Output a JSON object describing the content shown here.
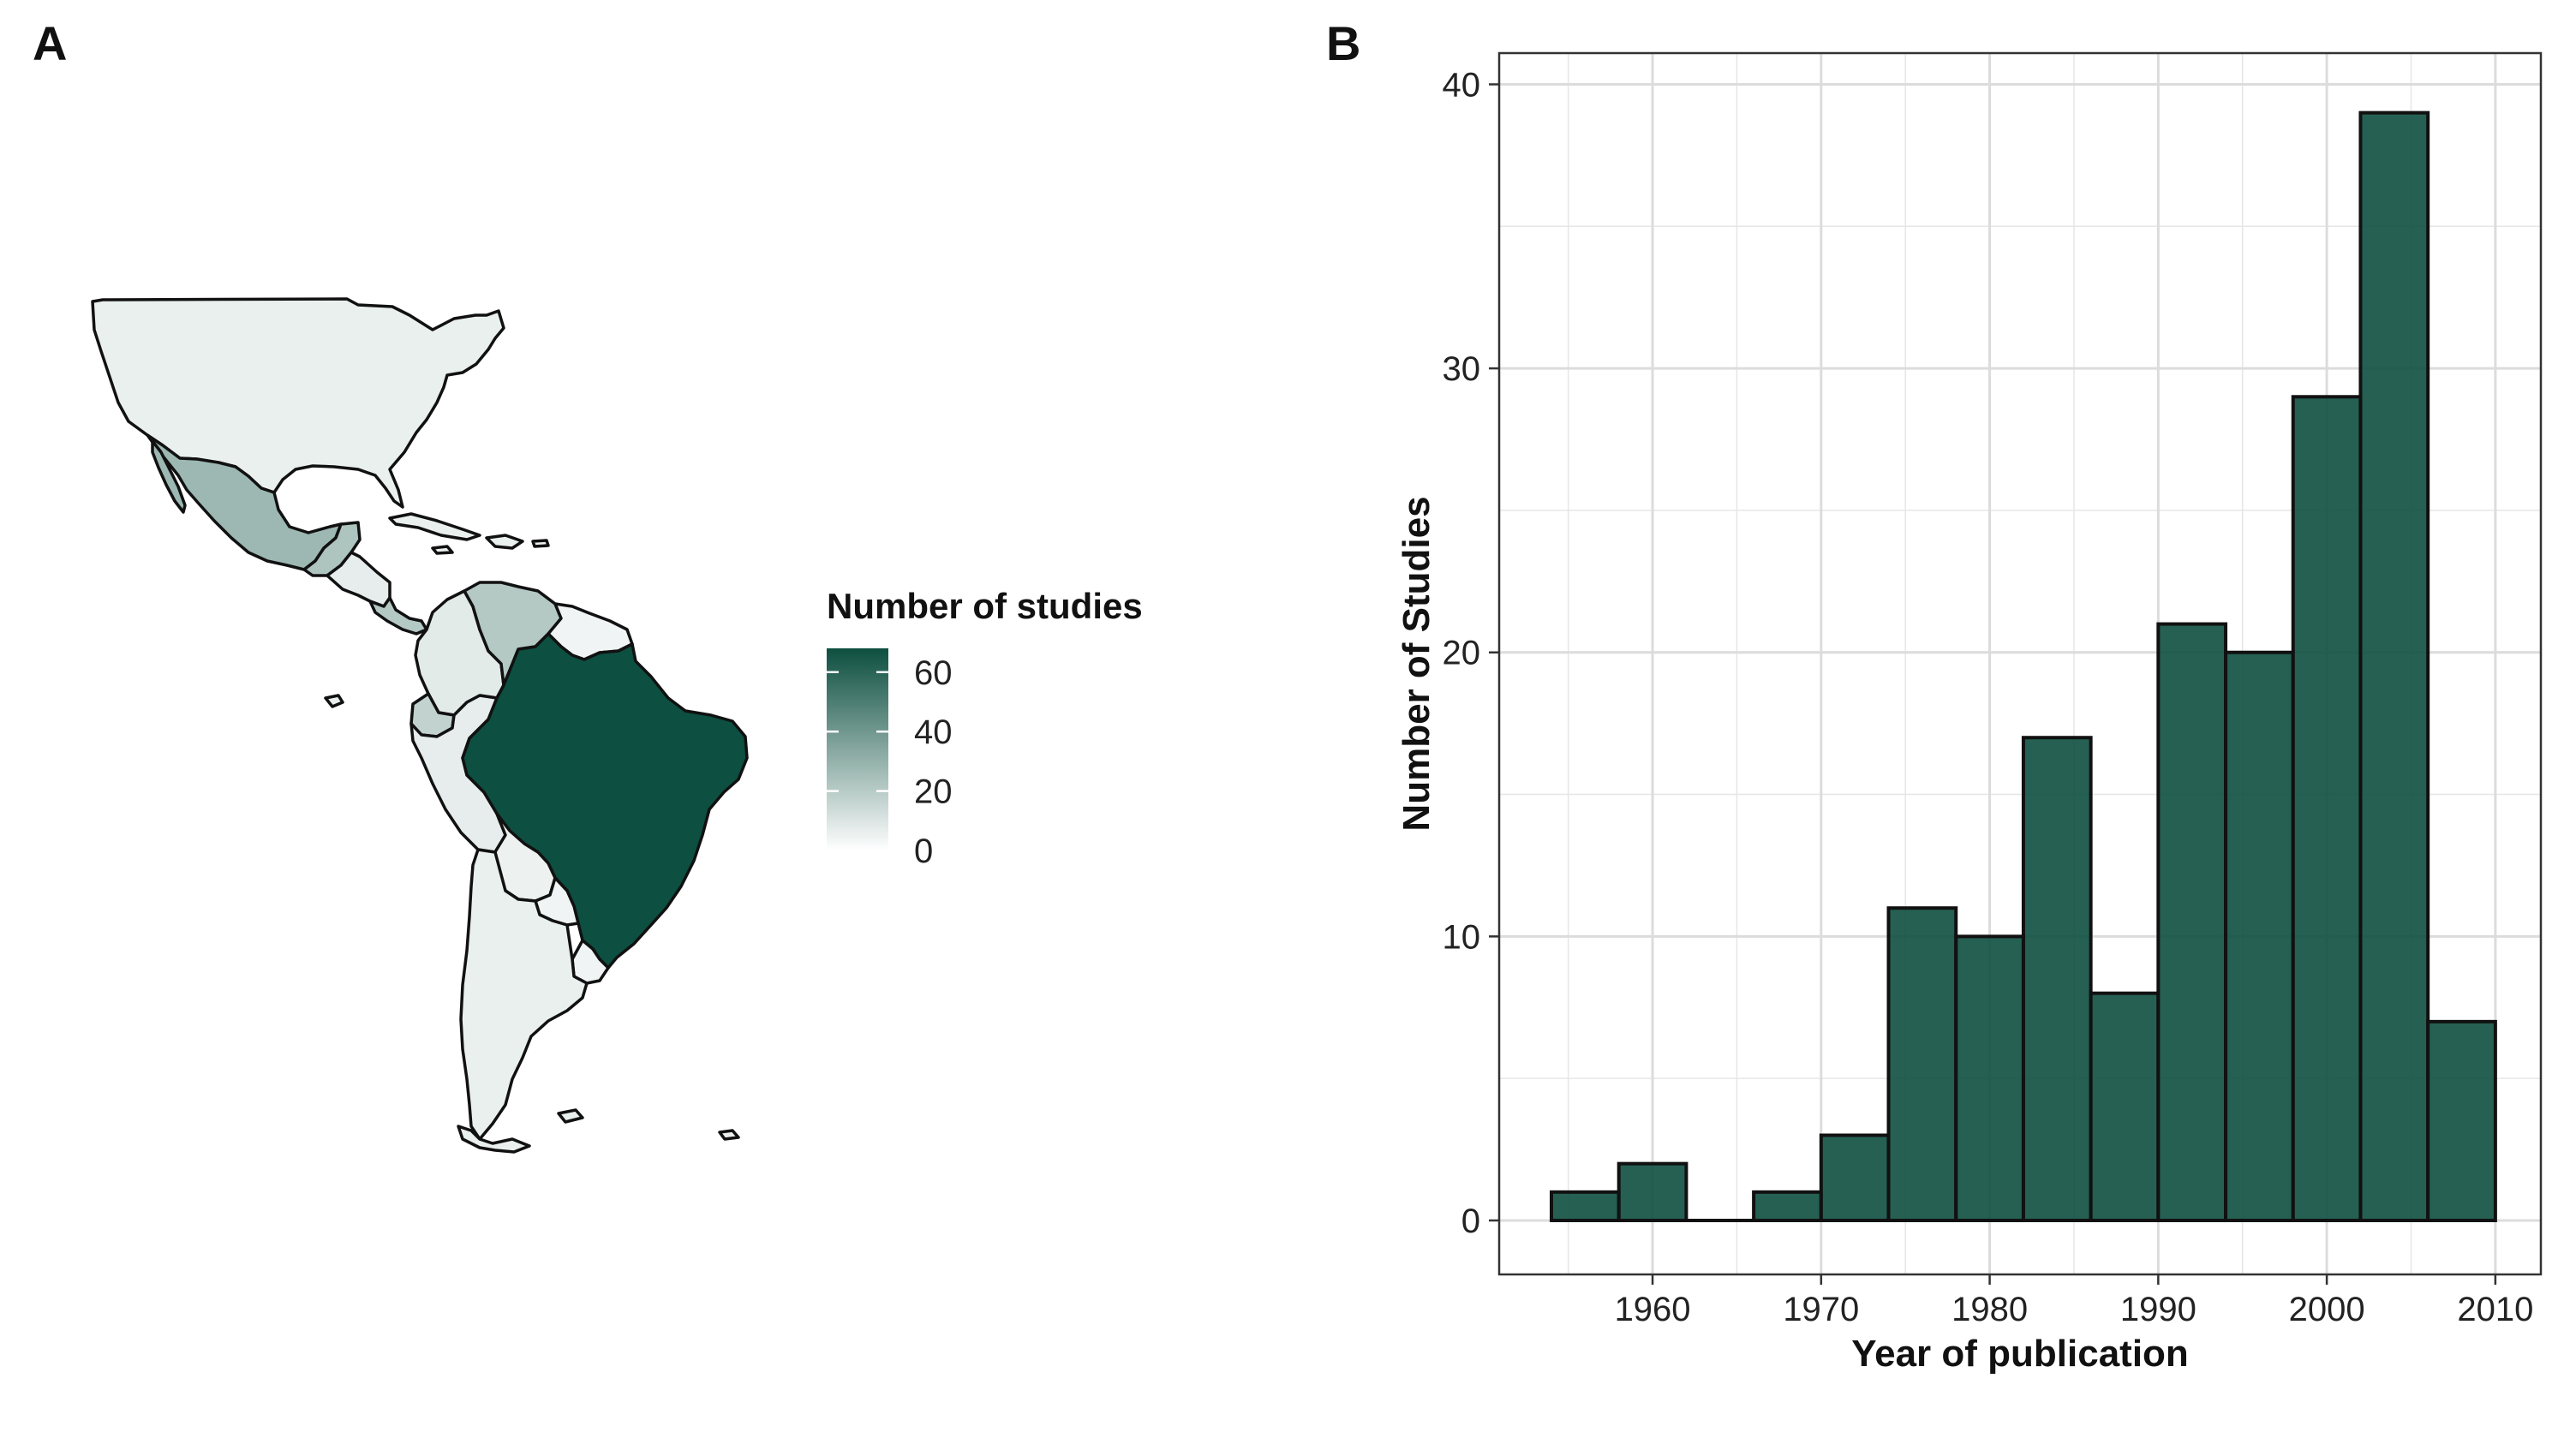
{
  "panels": {
    "a_label": "A",
    "b_label": "B"
  },
  "colors": {
    "low": "#ffffff",
    "high": "#0d4f40",
    "bar_fill": "#0d4f40",
    "bar_opacity": 0.9,
    "grid": "#e6e6e6",
    "frame": "#333333",
    "country_outline": "#111111"
  },
  "map_legend": {
    "title": "Number of studies",
    "ticks": [
      0,
      20,
      40,
      60
    ],
    "scale_min": 0,
    "scale_max": 68
  },
  "map_regions": [
    {
      "id": "north-america",
      "count": 2
    },
    {
      "id": "mexico",
      "count": 25
    },
    {
      "id": "guatemala-belize",
      "count": 20
    },
    {
      "id": "central-america",
      "count": 3
    },
    {
      "id": "panama-costa-rica",
      "count": 18
    },
    {
      "id": "colombia",
      "count": 4
    },
    {
      "id": "venezuela",
      "count": 18
    },
    {
      "id": "guianas",
      "count": 0
    },
    {
      "id": "ecuador",
      "count": 14
    },
    {
      "id": "peru",
      "count": 3
    },
    {
      "id": "brazil",
      "count": 68
    },
    {
      "id": "bolivia",
      "count": 1
    },
    {
      "id": "paraguay",
      "count": 0
    },
    {
      "id": "uruguay",
      "count": 0
    },
    {
      "id": "chile-argentina",
      "count": 2
    }
  ],
  "chart_data": {
    "type": "bar",
    "xlabel": "Year of publication",
    "ylabel": "Number of Studies",
    "xlim": [
      1950.9,
      2012.7
    ],
    "ylim": [
      -1.9,
      41.1
    ],
    "x_ticks": [
      1960,
      1970,
      1980,
      1990,
      2000,
      2010
    ],
    "y_ticks": [
      0,
      10,
      20,
      30,
      40
    ],
    "grid": "on",
    "bins": [
      {
        "x0": 1954,
        "x1": 1958,
        "value": 1
      },
      {
        "x0": 1958,
        "x1": 1962,
        "value": 2
      },
      {
        "x0": 1962,
        "x1": 1966,
        "value": 0
      },
      {
        "x0": 1966,
        "x1": 1970,
        "value": 1
      },
      {
        "x0": 1970,
        "x1": 1974,
        "value": 3
      },
      {
        "x0": 1974,
        "x1": 1978,
        "value": 11
      },
      {
        "x0": 1978,
        "x1": 1982,
        "value": 10
      },
      {
        "x0": 1982,
        "x1": 1986,
        "value": 17
      },
      {
        "x0": 1986,
        "x1": 1990,
        "value": 8
      },
      {
        "x0": 1990,
        "x1": 1994,
        "value": 21
      },
      {
        "x0": 1994,
        "x1": 1998,
        "value": 20
      },
      {
        "x0": 1998,
        "x1": 2002,
        "value": 29
      },
      {
        "x0": 2002,
        "x1": 2006,
        "value": 39
      },
      {
        "x0": 2006,
        "x1": 2010,
        "value": 7
      }
    ]
  }
}
